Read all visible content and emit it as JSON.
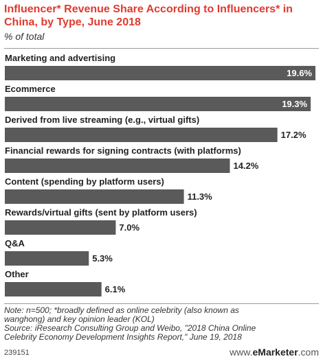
{
  "header": {
    "title": "Influencer* Revenue Share According to Influencers* in China, by Type, June 2018",
    "subtitle": "% of total"
  },
  "colors": {
    "title": "#e03a2f",
    "bar": "#5a5a5a",
    "inside_label": "#ffffff",
    "outside_label": "#222222"
  },
  "chart_data": {
    "type": "bar",
    "orientation": "horizontal",
    "title": "Influencer* Revenue Share According to Influencers* in China, by Type, June 2018",
    "subtitle": "% of total",
    "categories": [
      "Marketing and advertising",
      "Ecommerce",
      "Derived from live streaming (e.g., virtual gifts)",
      "Financial rewards for signing contracts (with platforms)",
      "Content (spending by platform users)",
      "Rewards/virtual gifts (sent by platform users)",
      "Q&A",
      "Other"
    ],
    "values": [
      19.6,
      19.3,
      17.2,
      14.2,
      11.3,
      7.0,
      5.3,
      6.1
    ],
    "value_labels": [
      "19.6%",
      "19.3%",
      "17.2%",
      "14.2%",
      "11.3%",
      "7.0%",
      "5.3%",
      "6.1%"
    ],
    "xlim": [
      0,
      19.6
    ],
    "grid": false,
    "legend": "none"
  },
  "footer": {
    "note_lines": [
      "Note: n=500; *broadly defined as online celebrity (also known as",
      "wanghong) and key opinion leader (KOL)",
      "Source: iResearch Consulting Group and Weibo, \"2018 China Online",
      "Celebrity Economy Development Insights Report,\" June 19, 2018"
    ],
    "chart_id": "239151",
    "brand_prefix": "www.",
    "brand_name": "eMarketer",
    "brand_suffix": ".com"
  }
}
